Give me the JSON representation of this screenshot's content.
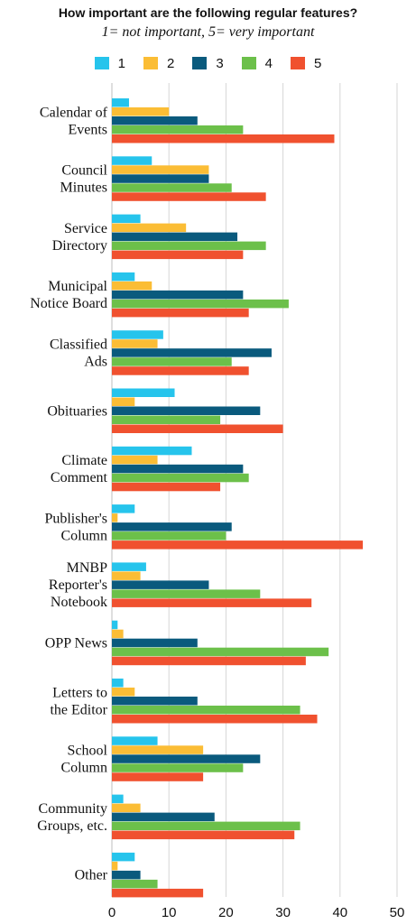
{
  "chart_data": {
    "type": "bar",
    "orientation": "horizontal",
    "title": "How important are the following regular features?",
    "subtitle": "1= not important,  5= very important",
    "legend_position": "top",
    "grid": true,
    "xlim": [
      0,
      50
    ],
    "x_ticks": [
      "0",
      "10",
      "20",
      "30",
      "40",
      "50"
    ],
    "categories": [
      [
        "Calendar of",
        "Events"
      ],
      [
        "Council",
        "Minutes"
      ],
      [
        "Service",
        "Directory"
      ],
      [
        "Municipal",
        "Notice Board"
      ],
      [
        "Classified",
        "Ads"
      ],
      [
        "Obituaries"
      ],
      [
        "Climate",
        "Comment"
      ],
      [
        "Publisher's",
        "Column"
      ],
      [
        "MNBP",
        "Reporter's",
        "Notebook"
      ],
      [
        "OPP News"
      ],
      [
        "Letters to",
        "the Editor"
      ],
      [
        "School",
        "Column"
      ],
      [
        "Community",
        "Groups, etc."
      ],
      [
        "Other"
      ]
    ],
    "series": [
      {
        "name": "1",
        "color": "#26c4ec",
        "values": [
          3,
          7,
          5,
          4,
          9,
          11,
          14,
          4,
          6,
          1,
          2,
          8,
          2,
          4
        ]
      },
      {
        "name": "2",
        "color": "#fbbd35",
        "values": [
          10,
          17,
          13,
          7,
          8,
          4,
          8,
          1,
          5,
          2,
          4,
          16,
          5,
          1
        ]
      },
      {
        "name": "3",
        "color": "#0a5a7d",
        "values": [
          15,
          17,
          22,
          23,
          28,
          26,
          23,
          21,
          17,
          15,
          15,
          26,
          18,
          5
        ]
      },
      {
        "name": "4",
        "color": "#6cc04a",
        "values": [
          23,
          21,
          27,
          31,
          21,
          19,
          24,
          20,
          26,
          38,
          33,
          23,
          33,
          8
        ]
      },
      {
        "name": "5",
        "color": "#f0512f",
        "values": [
          39,
          27,
          23,
          24,
          24,
          30,
          19,
          44,
          35,
          34,
          36,
          16,
          32,
          16
        ]
      }
    ]
  }
}
